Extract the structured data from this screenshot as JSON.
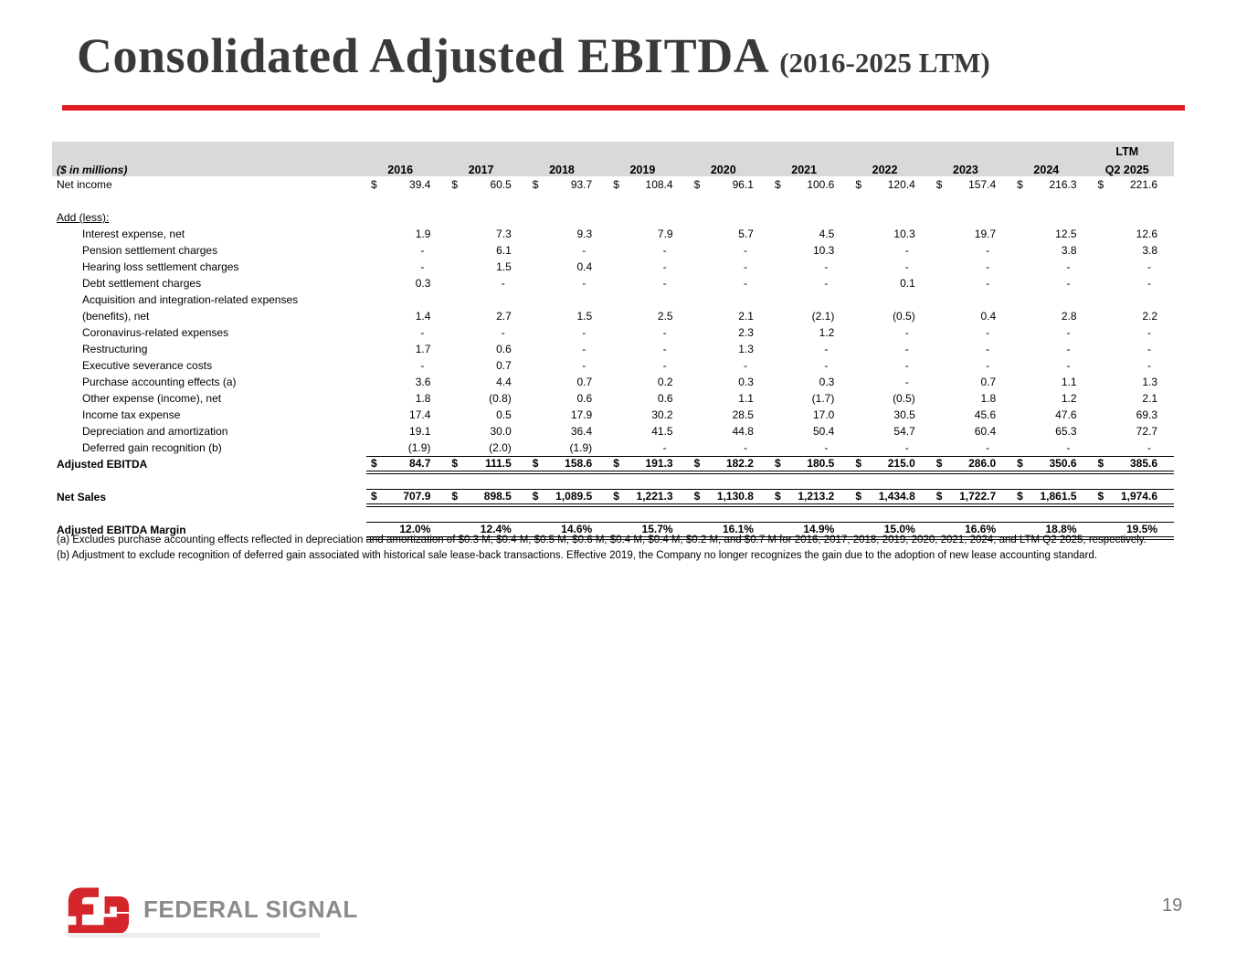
{
  "slide": {
    "title": "Consolidated Adjusted EBITDA",
    "title_suffix": "(2016-2025 LTM)",
    "page_number": "19",
    "logo_text": "FEDERAL SIGNAL",
    "colors": {
      "accent_red": "#E11D23",
      "logo_red": "#D4252A",
      "logo_gray": "#8B8B8E",
      "header_band_gray": "#D9D9D9",
      "title_gray": "#393939"
    }
  },
  "table": {
    "unit_label": "($ in millions)",
    "ltm_label": "LTM",
    "col_headers": [
      "2016",
      "2017",
      "2018",
      "2019",
      "2020",
      "2021",
      "2022",
      "2023",
      "2024",
      "Q2 2025"
    ],
    "rows": [
      {
        "label": "Net income",
        "indent": 0,
        "dollar": true,
        "values": [
          "39.4",
          "60.5",
          "93.7",
          "108.4",
          "96.1",
          "100.6",
          "120.4",
          "157.4",
          "216.3",
          "221.6"
        ]
      },
      {
        "spacer": true,
        "height": 9
      },
      {
        "label": "Add (less):",
        "indent": 0,
        "label_underline": true,
        "values": []
      },
      {
        "label": "Interest expense, net",
        "indent": 1,
        "values": [
          "1.9",
          "7.3",
          "9.3",
          "7.9",
          "5.7",
          "4.5",
          "10.3",
          "19.7",
          "12.5",
          "12.6"
        ]
      },
      {
        "label": "Pension settlement charges",
        "indent": 1,
        "values": [
          "-",
          "6.1",
          "-",
          "-",
          "-",
          "10.3",
          "-",
          "-",
          "3.8",
          "3.8"
        ]
      },
      {
        "label": "Hearing loss settlement charges",
        "indent": 1,
        "values": [
          "-",
          "1.5",
          "0.4",
          "-",
          "-",
          "-",
          "-",
          "-",
          "-",
          "-"
        ]
      },
      {
        "label": "Debt settlement charges",
        "indent": 1,
        "values": [
          "0.3",
          "-",
          "-",
          "-",
          "-",
          "-",
          "0.1",
          "-",
          "-",
          "-"
        ]
      },
      {
        "label": "Acquisition and integration-related expenses",
        "indent": 1,
        "values": []
      },
      {
        "label": "(benefits), net",
        "indent": 1,
        "values": [
          "1.4",
          "2.7",
          "1.5",
          "2.5",
          "2.1",
          "(2.1)",
          "(0.5)",
          "0.4",
          "2.8",
          "2.2"
        ]
      },
      {
        "label": "Coronavirus-related expenses",
        "indent": 1,
        "values": [
          "-",
          "-",
          "-",
          "-",
          "2.3",
          "1.2",
          "-",
          "-",
          "-",
          "-"
        ]
      },
      {
        "label": "Restructuring",
        "indent": 1,
        "values": [
          "1.7",
          "0.6",
          "-",
          "-",
          "1.3",
          "-",
          "-",
          "-",
          "-",
          "-"
        ]
      },
      {
        "label": "Executive severance costs",
        "indent": 1,
        "values": [
          "-",
          "0.7",
          "-",
          "-",
          "-",
          "-",
          "-",
          "-",
          "-",
          "-"
        ]
      },
      {
        "label": "Purchase accounting effects (a)",
        "indent": 1,
        "values": [
          "3.6",
          "4.4",
          "0.7",
          "0.2",
          "0.3",
          "0.3",
          "-",
          "0.7",
          "1.1",
          "1.3"
        ]
      },
      {
        "label": "Other expense (income), net",
        "indent": 1,
        "values": [
          "1.8",
          "(0.8)",
          "0.6",
          "0.6",
          "1.1",
          "(1.7)",
          "(0.5)",
          "1.8",
          "1.2",
          "2.1"
        ]
      },
      {
        "label": "Income tax expense",
        "indent": 1,
        "values": [
          "17.4",
          "0.5",
          "17.9",
          "30.2",
          "28.5",
          "17.0",
          "30.5",
          "45.6",
          "47.6",
          "69.3"
        ]
      },
      {
        "label": "Depreciation and amortization",
        "indent": 1,
        "values": [
          "19.1",
          "30.0",
          "36.4",
          "41.5",
          "44.8",
          "50.4",
          "54.7",
          "60.4",
          "65.3",
          "72.7"
        ]
      },
      {
        "label": "Deferred gain recognition (b)",
        "indent": 1,
        "values": [
          "(1.9)",
          "(2.0)",
          "(1.9)",
          "-",
          "-",
          "-",
          "-",
          "-",
          "-",
          "-"
        ]
      },
      {
        "label": "Adjusted EBITDA",
        "indent": 0,
        "bold": true,
        "dollar": true,
        "top_border": true,
        "double_bottom": true,
        "values": [
          "84.7",
          "111.5",
          "158.6",
          "191.3",
          "182.2",
          "180.5",
          "215.0",
          "286.0",
          "350.6",
          "385.6"
        ]
      },
      {
        "spacer": true,
        "height": 12
      },
      {
        "label": "Net Sales",
        "indent": 0,
        "bold": true,
        "dollar": true,
        "top_border": true,
        "double_bottom": true,
        "values": [
          "707.9",
          "898.5",
          "1,089.5",
          "1,221.3",
          "1,130.8",
          "1,213.2",
          "1,434.8",
          "1,722.7",
          "1,861.5",
          "1,974.6"
        ]
      },
      {
        "spacer": true,
        "height": 7
      },
      {
        "label": "Adjusted EBITDA Margin",
        "indent": 0,
        "bold": true,
        "top_border": true,
        "double_bottom": true,
        "values": [
          "12.0%",
          "12.4%",
          "14.6%",
          "15.7%",
          "16.1%",
          "14.9%",
          "15.0%",
          "16.6%",
          "18.8%",
          "19.5%"
        ]
      }
    ]
  },
  "footnotes": {
    "a": "(a) Excludes purchase accounting effects reflected in depreciation and amortization of $0.3 M, $0.4 M, $0.5 M, $0.6 M, $0.4 M, $0.4 M, $0.2 M, and $0.7 M for 2016, 2017, 2018, 2019, 2020, 2021, 2024, and LTM Q2 2025, respectively.",
    "b": "(b) Adjustment to exclude recognition of deferred gain associated with historical sale lease-back transactions.  Effective 2019, the Company no longer recognizes the gain due to the adoption of new lease accounting standard."
  }
}
